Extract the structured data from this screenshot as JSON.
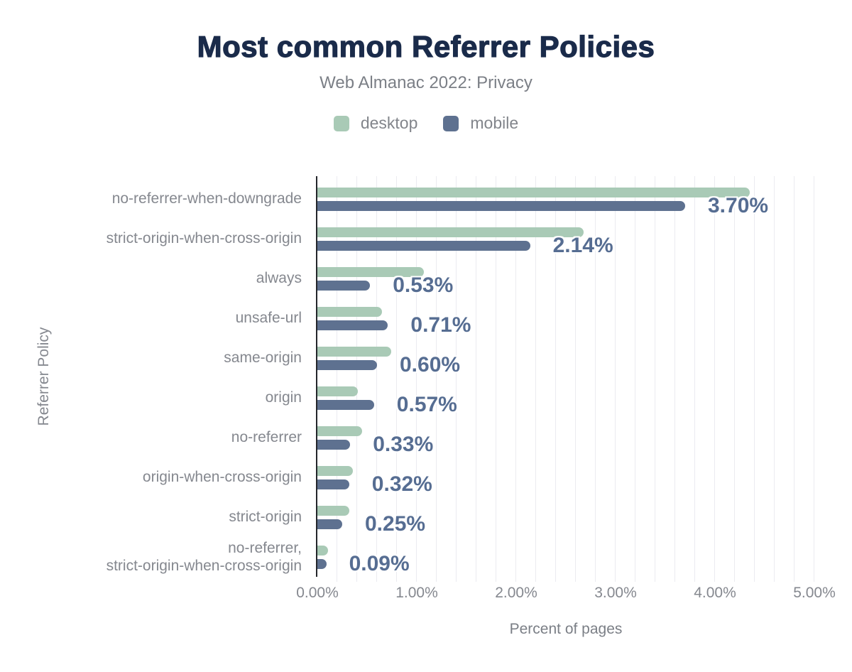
{
  "header": {
    "title": "Most common Referrer Policies",
    "subtitle": "Web Almanac 2022: Privacy"
  },
  "chart_data": {
    "type": "bar",
    "orientation": "horizontal",
    "title": "Most common Referrer Policies",
    "subtitle": "Web Almanac 2022: Privacy",
    "xlabel": "Percent of pages",
    "ylabel": "Referrer Policy",
    "xlim": [
      0,
      5
    ],
    "x_ticks": [
      "0.00%",
      "1.00%",
      "2.00%",
      "3.00%",
      "4.00%",
      "5.00%"
    ],
    "grid": "vertical minor gridlines every 0.20%",
    "legend_position": "top-center",
    "categories": [
      "no-referrer-when-downgrade",
      "strict-origin-when-cross-origin",
      "always",
      "unsafe-url",
      "same-origin",
      "origin",
      "no-referrer",
      "origin-when-cross-origin",
      "strict-origin",
      "no-referrer,\nstrict-origin-when-cross-origin"
    ],
    "series": [
      {
        "name": "desktop",
        "color": "#a9cab6",
        "values": [
          4.35,
          2.68,
          1.07,
          0.65,
          0.74,
          0.41,
          0.45,
          0.36,
          0.32,
          0.11
        ]
      },
      {
        "name": "mobile",
        "color": "#5e7190",
        "values": [
          3.7,
          2.14,
          0.53,
          0.71,
          0.6,
          0.57,
          0.33,
          0.32,
          0.25,
          0.09
        ],
        "data_labels": [
          "3.70%",
          "2.14%",
          "0.53%",
          "0.71%",
          "0.60%",
          "0.57%",
          "0.33%",
          "0.32%",
          "0.25%",
          "0.09%"
        ]
      }
    ]
  },
  "colors": {
    "background": "#ffffff",
    "title": "#1a2b4a",
    "subtitle": "#7b7f86",
    "axis_text": "#85888f",
    "axis_line": "#24262b",
    "gridline": "#ebebf0",
    "desktop_bar": "#a9cab6",
    "mobile_bar": "#5e7190",
    "value_label": "#566d92"
  }
}
